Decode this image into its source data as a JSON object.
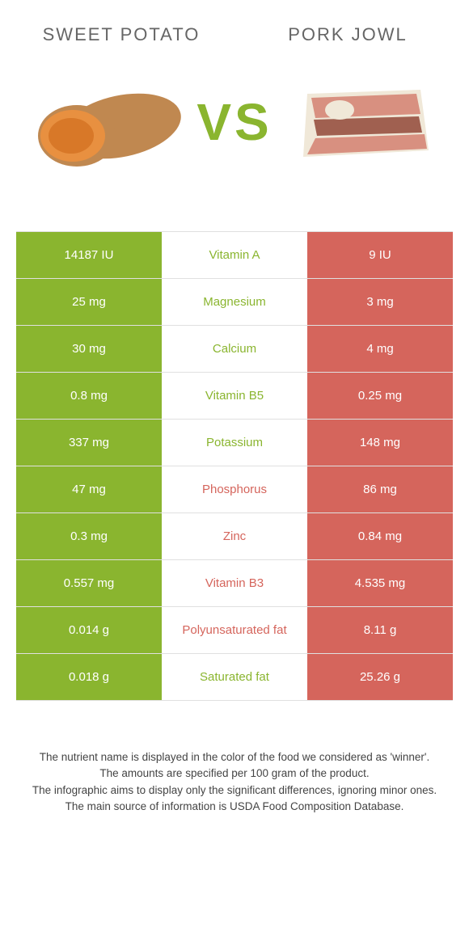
{
  "header": {
    "left_title": "Sweet potato",
    "right_title": "Pork jowl",
    "vs": "VS"
  },
  "colors": {
    "green": "#8ab52f",
    "red": "#d5655c",
    "text_gray": "#666666",
    "footer_text": "#444444",
    "border": "#e0e0e0"
  },
  "table": {
    "rows": [
      {
        "left": "14187 IU",
        "nutrient": "Vitamin A",
        "right": "9 IU",
        "winner": "green"
      },
      {
        "left": "25 mg",
        "nutrient": "Magnesium",
        "right": "3 mg",
        "winner": "green"
      },
      {
        "left": "30 mg",
        "nutrient": "Calcium",
        "right": "4 mg",
        "winner": "green"
      },
      {
        "left": "0.8 mg",
        "nutrient": "Vitamin B5",
        "right": "0.25 mg",
        "winner": "green"
      },
      {
        "left": "337 mg",
        "nutrient": "Potassium",
        "right": "148 mg",
        "winner": "green"
      },
      {
        "left": "47 mg",
        "nutrient": "Phosphorus",
        "right": "86 mg",
        "winner": "red"
      },
      {
        "left": "0.3 mg",
        "nutrient": "Zinc",
        "right": "0.84 mg",
        "winner": "red"
      },
      {
        "left": "0.557 mg",
        "nutrient": "Vitamin B3",
        "right": "4.535 mg",
        "winner": "red"
      },
      {
        "left": "0.014 g",
        "nutrient": "Polyunsaturated fat",
        "right": "8.11 g",
        "winner": "red"
      },
      {
        "left": "0.018 g",
        "nutrient": "Saturated fat",
        "right": "25.26 g",
        "winner": "green"
      }
    ]
  },
  "footer": {
    "line1": "The nutrient name is displayed in the color of the food we considered as 'winner'.",
    "line2": "The amounts are specified per 100 gram of the product.",
    "line3": "The infographic aims to display only the significant differences, ignoring minor ones.",
    "line4": "The main source of information is USDA Food Composition Database."
  }
}
